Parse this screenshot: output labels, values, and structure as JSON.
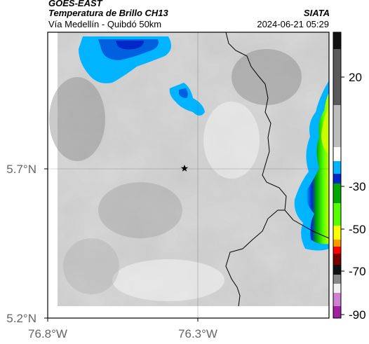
{
  "header": {
    "satellite": "GOES-EAST",
    "product": "Temperatura de Brillo CH13",
    "route": "Vía Medellín - Quibdó 50km",
    "brand": "SIATA",
    "datetime": "2024-06-21 05:29"
  },
  "axes": {
    "lat_labels": [
      "5.7°N",
      "5.2°N"
    ],
    "lon_labels": [
      "76.8°W",
      "76.3°W"
    ]
  },
  "colorbar": {
    "tick_labels": [
      "20",
      "-30",
      "-50",
      "-70",
      "-90"
    ],
    "colors": [
      "#111111",
      "#5a5a5a",
      "#bdbdbd",
      "#ffffff",
      "#00b4ff",
      "#0027c8",
      "#00a800",
      "#55ff00",
      "#ffff00",
      "#ff9900",
      "#ff0000",
      "#7a0000",
      "#111111",
      "#888888",
      "#f0f0f0",
      "#d080d0",
      "#a020a0"
    ]
  }
}
